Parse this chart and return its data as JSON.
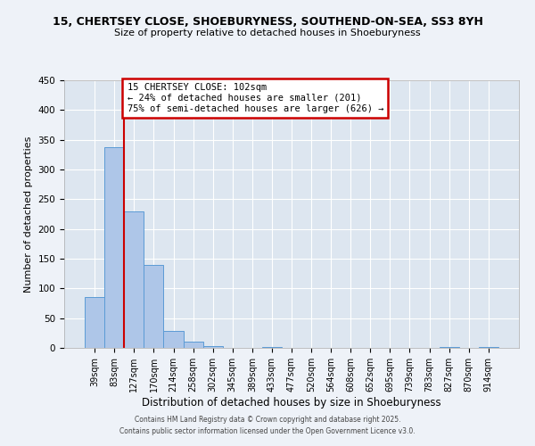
{
  "title": "15, CHERTSEY CLOSE, SHOEBURYNESS, SOUTHEND-ON-SEA, SS3 8YH",
  "subtitle": "Size of property relative to detached houses in Shoeburyness",
  "xlabel": "Distribution of detached houses by size in Shoeburyness",
  "ylabel": "Number of detached properties",
  "categories": [
    "39sqm",
    "83sqm",
    "127sqm",
    "170sqm",
    "214sqm",
    "258sqm",
    "302sqm",
    "345sqm",
    "389sqm",
    "433sqm",
    "477sqm",
    "520sqm",
    "564sqm",
    "608sqm",
    "652sqm",
    "695sqm",
    "739sqm",
    "783sqm",
    "827sqm",
    "870sqm",
    "914sqm"
  ],
  "values": [
    86,
    337,
    229,
    139,
    29,
    11,
    3,
    0,
    0,
    2,
    0,
    0,
    0,
    0,
    0,
    0,
    0,
    0,
    2,
    0,
    2
  ],
  "bar_color": "#aec6e8",
  "bar_edge_color": "#5b9bd5",
  "vline_color": "#cc0000",
  "annotation_title": "15 CHERTSEY CLOSE: 102sqm",
  "annotation_line2": "← 24% of detached houses are smaller (201)",
  "annotation_line3": "75% of semi-detached houses are larger (626) →",
  "annotation_box_color": "#cc0000",
  "ylim": [
    0,
    450
  ],
  "yticks": [
    0,
    50,
    100,
    150,
    200,
    250,
    300,
    350,
    400,
    450
  ],
  "footer_line1": "Contains HM Land Registry data © Crown copyright and database right 2025.",
  "footer_line2": "Contains public sector information licensed under the Open Government Licence v3.0.",
  "bg_color": "#eef2f8",
  "plot_bg_color": "#dde6f0",
  "grid_color": "#ffffff"
}
